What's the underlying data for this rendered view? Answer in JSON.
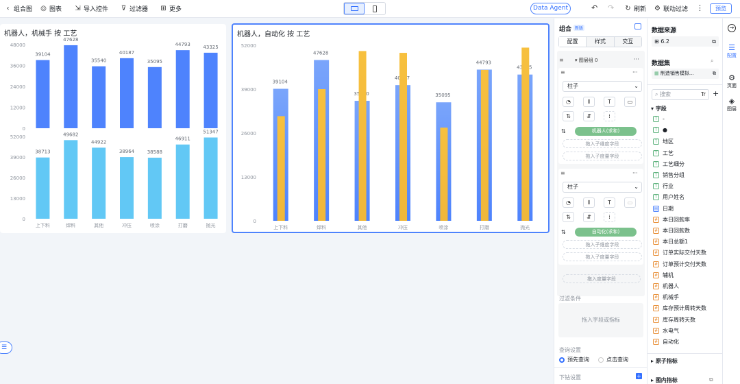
{
  "toolbar": {
    "back": "<",
    "title": "组合图",
    "chart": "图表",
    "import": "导入控件",
    "filter": "过滤器",
    "more": "更多",
    "agent": "Data Agent",
    "refresh": "刷新",
    "linkage": "联动过滤",
    "preview": "预览"
  },
  "chart_data": [
    {
      "type": "bar",
      "title": "机器人，机械手 按 工艺",
      "categories": [
        "上下料",
        "焊料",
        "其他",
        "冲压",
        "喷涂",
        "打磨",
        "抛光"
      ],
      "top": {
        "ylim": [
          0,
          48000
        ],
        "ticks": [
          "48000",
          "36000",
          "24000",
          "12000",
          "0"
        ],
        "values": [
          39104,
          47628,
          35540,
          40187,
          35095,
          44793,
          43325
        ],
        "color": "#4e83fd"
      },
      "bottom": {
        "ylim": [
          0,
          52000
        ],
        "ticks": [
          "52000",
          "39000",
          "26000",
          "13000",
          "0"
        ],
        "values": [
          38713,
          49682,
          44922,
          38964,
          38588,
          46911,
          51347
        ],
        "color": "#62c8f5"
      }
    },
    {
      "type": "bar",
      "title": "机器人，自动化 按 工艺",
      "categories": [
        "上下料",
        "焊料",
        "其他",
        "冲压",
        "喷涂",
        "打磨",
        "抛光"
      ],
      "ylim": [
        0,
        52000
      ],
      "ticks": [
        "52000",
        "39000",
        "26000",
        "13000",
        "0"
      ],
      "series": [
        {
          "values": [
            39104,
            47628,
            35540,
            40187,
            35095,
            44793,
            43325
          ],
          "color": "#4e83fd"
        },
        {
          "values": [
            31000,
            39000,
            50285,
            49754,
            27600,
            44700,
            51299
          ],
          "color": "#f7c03e"
        }
      ]
    }
  ],
  "config": {
    "header": "组合",
    "badge": "新版",
    "tabs": [
      "配置",
      "样式",
      "交互"
    ],
    "group": "图层组 0",
    "type1": "柱子",
    "pill1": "机器人(求和)",
    "dim_slot": "拖入子维度字段",
    "mea_slot": "拖入子度量字段",
    "type2": "柱子",
    "pill2": "自动化(求和)",
    "dim_slot2": "拖入子维度字段",
    "mea_slot2": "拖入子度量字段",
    "drop_measure": "拖入度量字段",
    "filter_label": "过滤条件",
    "filter_drop": "拖入字段或指标",
    "query_label": "查询设置",
    "query_opt1": "预先查询",
    "query_opt2": "点击查询",
    "drill": "下钻设置"
  },
  "datasource": {
    "header": "数据来源",
    "source": "6.2",
    "dataset_header": "数据集",
    "dataset": "制造销售模拟...",
    "search_placeholder": "搜索",
    "field_section": "字段",
    "fields": [
      {
        "name": "-",
        "kind": "dim"
      },
      {
        "name": "●",
        "kind": "dim"
      },
      {
        "name": "地区",
        "kind": "dim"
      },
      {
        "name": "工艺",
        "kind": "dim"
      },
      {
        "name": "工艺细分",
        "kind": "dim"
      },
      {
        "name": "销售分组",
        "kind": "dim"
      },
      {
        "name": "行业",
        "kind": "dim"
      },
      {
        "name": "用户姓名",
        "kind": "dim"
      },
      {
        "name": "日期",
        "kind": "date"
      },
      {
        "name": "本日回款率",
        "kind": "num"
      },
      {
        "name": "本日回款数",
        "kind": "num"
      },
      {
        "name": "本日总额1",
        "kind": "num"
      },
      {
        "name": "订单实际交付天数",
        "kind": "num"
      },
      {
        "name": "订单预计交付天数",
        "kind": "num"
      },
      {
        "name": "辅机",
        "kind": "num"
      },
      {
        "name": "机器人",
        "kind": "num"
      },
      {
        "name": "机械手",
        "kind": "num"
      },
      {
        "name": "库存预计周转天数",
        "kind": "num"
      },
      {
        "name": "库存周转天数",
        "kind": "num"
      },
      {
        "name": "水电气",
        "kind": "num"
      },
      {
        "name": "自动化",
        "kind": "num"
      }
    ],
    "atom_section": "原子指标",
    "derived_section": "图内指标"
  },
  "rail": {
    "config": "配置",
    "page": "页面",
    "layer": "图层"
  }
}
